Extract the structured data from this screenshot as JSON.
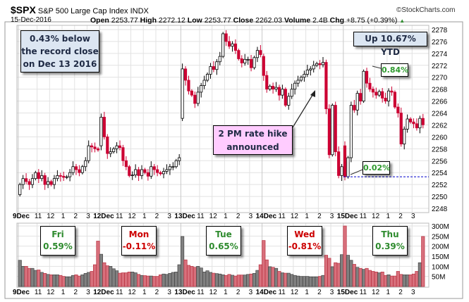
{
  "header": {
    "symbol": "$SPX",
    "name": "S&P 500 Large Cap Index",
    "exchange": "INDX",
    "watermark": "©StockCharts.com",
    "date": "15-Dec-2016",
    "open_label": "Open",
    "open": "2253.77",
    "high_label": "High",
    "high": "2272.12",
    "low_label": "Low",
    "low": "2253.77",
    "close_label": "Close",
    "close": "2262.03",
    "volume_label": "Volume",
    "volume": "2.4B",
    "chg_label": "Chg",
    "chg": "+8.75 (+0.39%)"
  },
  "colors": {
    "up_fill": "#ffffff",
    "down_fill": "#cc0033",
    "vol_up": "#808080",
    "vol_down": "#d8707c",
    "dashed": "#0000cc",
    "positive": "#2e8b2e",
    "negative": "#cc0000"
  },
  "annotations": {
    "record": [
      "0.43% below",
      "the record close",
      "on Dec 13 2016"
    ],
    "ytd": "Up 10.67% YTD",
    "rate_hike": [
      "2 PM rate hike",
      "announced"
    ],
    "pct_high": "0.84%",
    "pct_low": "0.02%"
  },
  "chart_data": {
    "type": "candlestick",
    "title": "$SPX S&P 500 Large Cap Index INDX",
    "interval": "15-minute",
    "price_ylim": [
      2248,
      2278
    ],
    "price_ticks": [
      "2248",
      "2250",
      "2252",
      "2254",
      "2256",
      "2258",
      "2260",
      "2262",
      "2264",
      "2266",
      "2268",
      "2270",
      "2272",
      "2274",
      "2276",
      "2278"
    ],
    "volume_ylim": [
      0,
      300
    ],
    "volume_ticks": [
      "50M",
      "100M",
      "150M",
      "200M",
      "250M",
      "300M"
    ],
    "hour_ticks": [
      "11",
      "12",
      "1",
      "2",
      "3"
    ],
    "reference_line": 2253.3,
    "days": [
      {
        "label": "9Dec",
        "weekday": "Fri",
        "change": "0.59%",
        "sign": "pos",
        "open": 2250.3,
        "closes": [
          2252,
          2253,
          2252.5,
          2252,
          2253,
          2254,
          2253,
          2253.5,
          2252,
          2252.5,
          2252,
          2253,
          2253.5,
          2253.4,
          2253.2,
          2253.3,
          2254,
          2255,
          2254.5,
          2254,
          2255,
          2256,
          2258.5,
          2258.3,
          2258,
          2257.8
        ],
        "volumes": [
          130,
          100,
          100,
          90,
          90,
          80,
          82,
          70,
          65,
          60,
          58,
          58,
          58,
          55,
          50,
          48,
          48,
          55,
          58,
          52,
          58,
          65,
          70,
          75,
          108,
          225
        ]
      },
      {
        "label": "12Dec",
        "weekday": "Mon",
        "change": "-0.11%",
        "sign": "neg",
        "open": 2258.5,
        "closes": [
          2263.3,
          2260,
          2257.2,
          2257.5,
          2258,
          2258.5,
          2258.2,
          2256,
          2255,
          2253.5,
          2253.6,
          2254.5,
          2253.5,
          2254.5,
          2254,
          2253.4,
          2255,
          2254.5,
          2254,
          2253.8,
          2254.2,
          2254.5,
          2255,
          2255,
          2256,
          2256.5
        ],
        "volumes": [
          160,
          118,
          103,
          100,
          88,
          78,
          66,
          68,
          68,
          72,
          72,
          68,
          60,
          55,
          54,
          52,
          52,
          50,
          50,
          58,
          62,
          60,
          65,
          70,
          72,
          108
        ]
      },
      {
        "label": "13Dec",
        "weekday": "Tue",
        "change": "0.65%",
        "sign": "pos",
        "open": 2263.1,
        "closes": [
          2271.4,
          2269.5,
          2267.7,
          2267,
          2265.6,
          2267.5,
          2268.6,
          2269.5,
          2270.5,
          2271.8,
          2271.3,
          2272.6,
          2273.5,
          2277.3,
          2276,
          2275.2,
          2275.6,
          2274.5,
          2273.1,
          2272.4,
          2273,
          2273,
          2271.6,
          2273.3,
          2274.5,
          2273.8
        ],
        "volumes": [
          248,
          132,
          105,
          100,
          95,
          100,
          92,
          72,
          78,
          70,
          66,
          64,
          62,
          58,
          55,
          60,
          56,
          52,
          57,
          57,
          57,
          60,
          62,
          65,
          80,
          108
        ]
      },
      {
        "label": "14Dec",
        "weekday": "Wed",
        "change": "-0.81%",
        "sign": "neg",
        "open": 2273.5,
        "closes": [
          2270.3,
          2268,
          2268.5,
          2268,
          2268.3,
          2267,
          2268,
          2265.3,
          2266.8,
          2268,
          2269,
          2269.5,
          2270,
          2270.5,
          2271.2,
          2271.4,
          2272,
          2272.3,
          2272.1,
          2272.5,
          2264.7,
          2257,
          2265.3,
          2257.5,
          2253.5,
          2255
        ],
        "volumes": [
          228,
          132,
          98,
          95,
          90,
          75,
          68,
          66,
          66,
          60,
          55,
          52,
          50,
          50,
          50,
          48,
          48,
          48,
          50,
          55,
          155,
          140,
          98,
          118,
          115,
          158
        ]
      },
      {
        "label": "15Dec",
        "weekday": "Thu",
        "change": "0.39%",
        "sign": "pos",
        "open": 2258.5,
        "closes": [
          2253.3,
          2256.5,
          2265.3,
          2264.5,
          2267.3,
          2266,
          2271,
          2269,
          2268,
          2267.5,
          2267,
          2267.6,
          2266.5,
          2266,
          2267.7,
          2267.5,
          2265,
          2264,
          2258.8,
          2261.3,
          2263,
          2262.5,
          2262.2,
          2261.5,
          2263.1,
          2262.03
        ],
        "volumes": [
          300,
          155,
          130,
          110,
          95,
          90,
          85,
          90,
          80,
          75,
          72,
          68,
          72,
          55,
          58,
          52,
          52,
          75,
          60,
          58,
          58,
          58,
          62,
          75,
          118,
          248
        ]
      }
    ]
  }
}
